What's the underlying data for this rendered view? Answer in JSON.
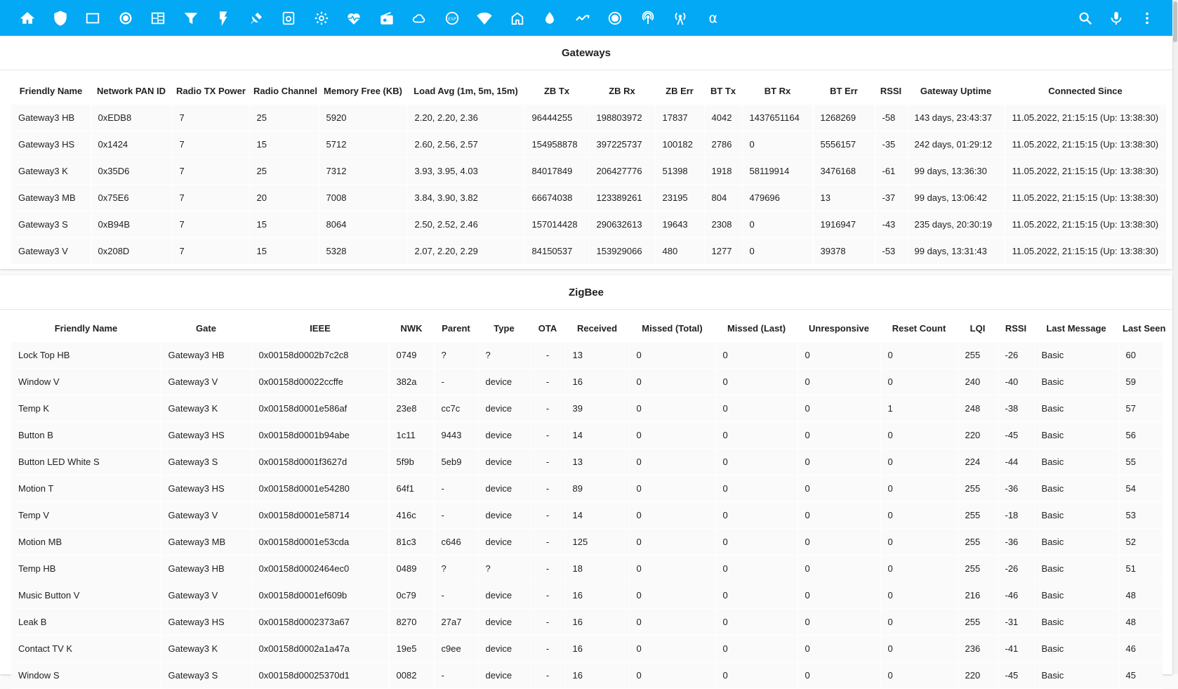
{
  "colors": {
    "toolbar": "#03a9f4",
    "row": "#fafafa"
  },
  "toolbar": {
    "tabs": [
      "home-icon",
      "shield-icon",
      "square-icon",
      "record-icon",
      "view-dashboard-icon",
      "filter-icon",
      "flash-icon",
      "satellite-dish-icon",
      "camera-document-icon",
      "gear-icon",
      "heart-pulse-icon",
      "radio-icon",
      "cloud-icon",
      "esp-icon",
      "wifi-lock-icon",
      "home-outline-icon",
      "water-drop-icon",
      "signal-toggle-icon",
      "radiobox-icon",
      "podcast-icon",
      "antenna-icon",
      "alpha-icon"
    ],
    "alpha_label": "α",
    "actions": [
      "search-icon",
      "microphone-icon",
      "more-vertical-icon"
    ]
  },
  "gateways": {
    "title": "Gateways",
    "columns": [
      "Friendly Name",
      "Network PAN ID",
      "Radio TX Power",
      "Radio Channel",
      "Memory Free (KB)",
      "Load Avg (1m, 5m, 15m)",
      "ZB Tx",
      "ZB Rx",
      "ZB Err",
      "BT Tx",
      "BT Rx",
      "BT Err",
      "RSSI",
      "Gateway Uptime",
      "Connected Since"
    ],
    "rows": [
      [
        "Gateway3 HB",
        "0xEDB8",
        "7",
        "25",
        "5920",
        "2.20, 2.20, 2.36",
        "96444255",
        "198803972",
        "17837",
        "4042",
        "1437651164",
        "1268269",
        "-58",
        "143 days, 23:43:37",
        "11.05.2022, 21:15:15 (Up: 13:38:30)"
      ],
      [
        "Gateway3 HS",
        "0x1424",
        "7",
        "15",
        "5712",
        "2.60, 2.56, 2.57",
        "154958878",
        "397225737",
        "100182",
        "2786",
        "0",
        "5556157",
        "-35",
        "242 days, 01:29:12",
        "11.05.2022, 21:15:15 (Up: 13:38:30)"
      ],
      [
        "Gateway3 K",
        "0x35D6",
        "7",
        "25",
        "7312",
        "3.93, 3.95, 4.03",
        "84017849",
        "206427776",
        "51398",
        "1918",
        "58119914",
        "3476168",
        "-61",
        "99 days, 13:36:30",
        "11.05.2022, 21:15:15 (Up: 13:38:30)"
      ],
      [
        "Gateway3 MB",
        "0x75E6",
        "7",
        "20",
        "7008",
        "3.84, 3.90, 3.82",
        "66674038",
        "123389261",
        "23195",
        "804",
        "479696",
        "13",
        "-37",
        "99 days, 13:06:42",
        "11.05.2022, 21:15:15 (Up: 13:38:30)"
      ],
      [
        "Gateway3 S",
        "0xB94B",
        "7",
        "15",
        "8064",
        "2.50, 2.52, 2.46",
        "157014428",
        "290632613",
        "19643",
        "2308",
        "0",
        "1916947",
        "-43",
        "235 days, 20:30:19",
        "11.05.2022, 21:15:15 (Up: 13:38:30)"
      ],
      [
        "Gateway3 V",
        "0x208D",
        "7",
        "15",
        "5328",
        "2.07, 2.20, 2.29",
        "84150537",
        "153929066",
        "480",
        "1277",
        "0",
        "39378",
        "-53",
        "99 days, 13:31:43",
        "11.05.2022, 21:15:15 (Up: 13:38:30)"
      ]
    ]
  },
  "zigbee": {
    "title": "ZigBee",
    "columns": [
      "Friendly Name",
      "Gate",
      "IEEE",
      "NWK",
      "Parent",
      "Type",
      "OTA",
      "Received",
      "Missed (Total)",
      "Missed (Last)",
      "Unresponsive",
      "Reset Count",
      "LQI",
      "RSSI",
      "Last Message",
      "Last Seen"
    ],
    "rows": [
      [
        "Lock Top HB",
        "Gateway3 HB",
        "0x00158d0002b7c2c8",
        "0749",
        "?",
        "?",
        "-",
        "13",
        "0",
        "0",
        "0",
        "0",
        "255",
        "-26",
        "Basic",
        "60"
      ],
      [
        "Window V",
        "Gateway3 V",
        "0x00158d00022ccffe",
        "382a",
        "-",
        "device",
        "-",
        "16",
        "0",
        "0",
        "0",
        "0",
        "240",
        "-40",
        "Basic",
        "59"
      ],
      [
        "Temp K",
        "Gateway3 K",
        "0x00158d0001e586af",
        "23e8",
        "cc7c",
        "device",
        "-",
        "39",
        "0",
        "0",
        "0",
        "1",
        "248",
        "-38",
        "Basic",
        "57"
      ],
      [
        "Button B",
        "Gateway3 HS",
        "0x00158d0001b94abe",
        "1c11",
        "9443",
        "device",
        "-",
        "14",
        "0",
        "0",
        "0",
        "0",
        "220",
        "-45",
        "Basic",
        "56"
      ],
      [
        "Button LED White S",
        "Gateway3 S",
        "0x00158d0001f3627d",
        "5f9b",
        "5eb9",
        "device",
        "-",
        "13",
        "0",
        "0",
        "0",
        "0",
        "224",
        "-44",
        "Basic",
        "55"
      ],
      [
        "Motion T",
        "Gateway3 HS",
        "0x00158d0001e54280",
        "64f1",
        "-",
        "device",
        "-",
        "89",
        "0",
        "0",
        "0",
        "0",
        "255",
        "-36",
        "Basic",
        "54"
      ],
      [
        "Temp V",
        "Gateway3 V",
        "0x00158d0001e58714",
        "416c",
        "-",
        "device",
        "-",
        "14",
        "0",
        "0",
        "0",
        "0",
        "255",
        "-18",
        "Basic",
        "53"
      ],
      [
        "Motion MB",
        "Gateway3 MB",
        "0x00158d0001e53cda",
        "81c3",
        "c646",
        "device",
        "-",
        "125",
        "0",
        "0",
        "0",
        "0",
        "255",
        "-36",
        "Basic",
        "52"
      ],
      [
        "Temp HB",
        "Gateway3 HB",
        "0x00158d0002464ec0",
        "0489",
        "?",
        "?",
        "-",
        "18",
        "0",
        "0",
        "0",
        "0",
        "255",
        "-26",
        "Basic",
        "51"
      ],
      [
        "Music Button V",
        "Gateway3 V",
        "0x00158d0001ef609b",
        "0c79",
        "-",
        "device",
        "-",
        "16",
        "0",
        "0",
        "0",
        "0",
        "216",
        "-46",
        "Basic",
        "48"
      ],
      [
        "Leak B",
        "Gateway3 HS",
        "0x00158d0002373a67",
        "8270",
        "27a7",
        "device",
        "-",
        "16",
        "0",
        "0",
        "0",
        "0",
        "255",
        "-31",
        "Basic",
        "48"
      ],
      [
        "Contact TV K",
        "Gateway3 K",
        "0x00158d0002a1a47a",
        "19e5",
        "c9ee",
        "device",
        "-",
        "16",
        "0",
        "0",
        "0",
        "0",
        "236",
        "-41",
        "Basic",
        "46"
      ],
      [
        "Window S",
        "Gateway3 S",
        "0x00158d00025370d1",
        "0082",
        "-",
        "device",
        "-",
        "16",
        "0",
        "0",
        "0",
        "0",
        "220",
        "-45",
        "Basic",
        "45"
      ]
    ]
  }
}
